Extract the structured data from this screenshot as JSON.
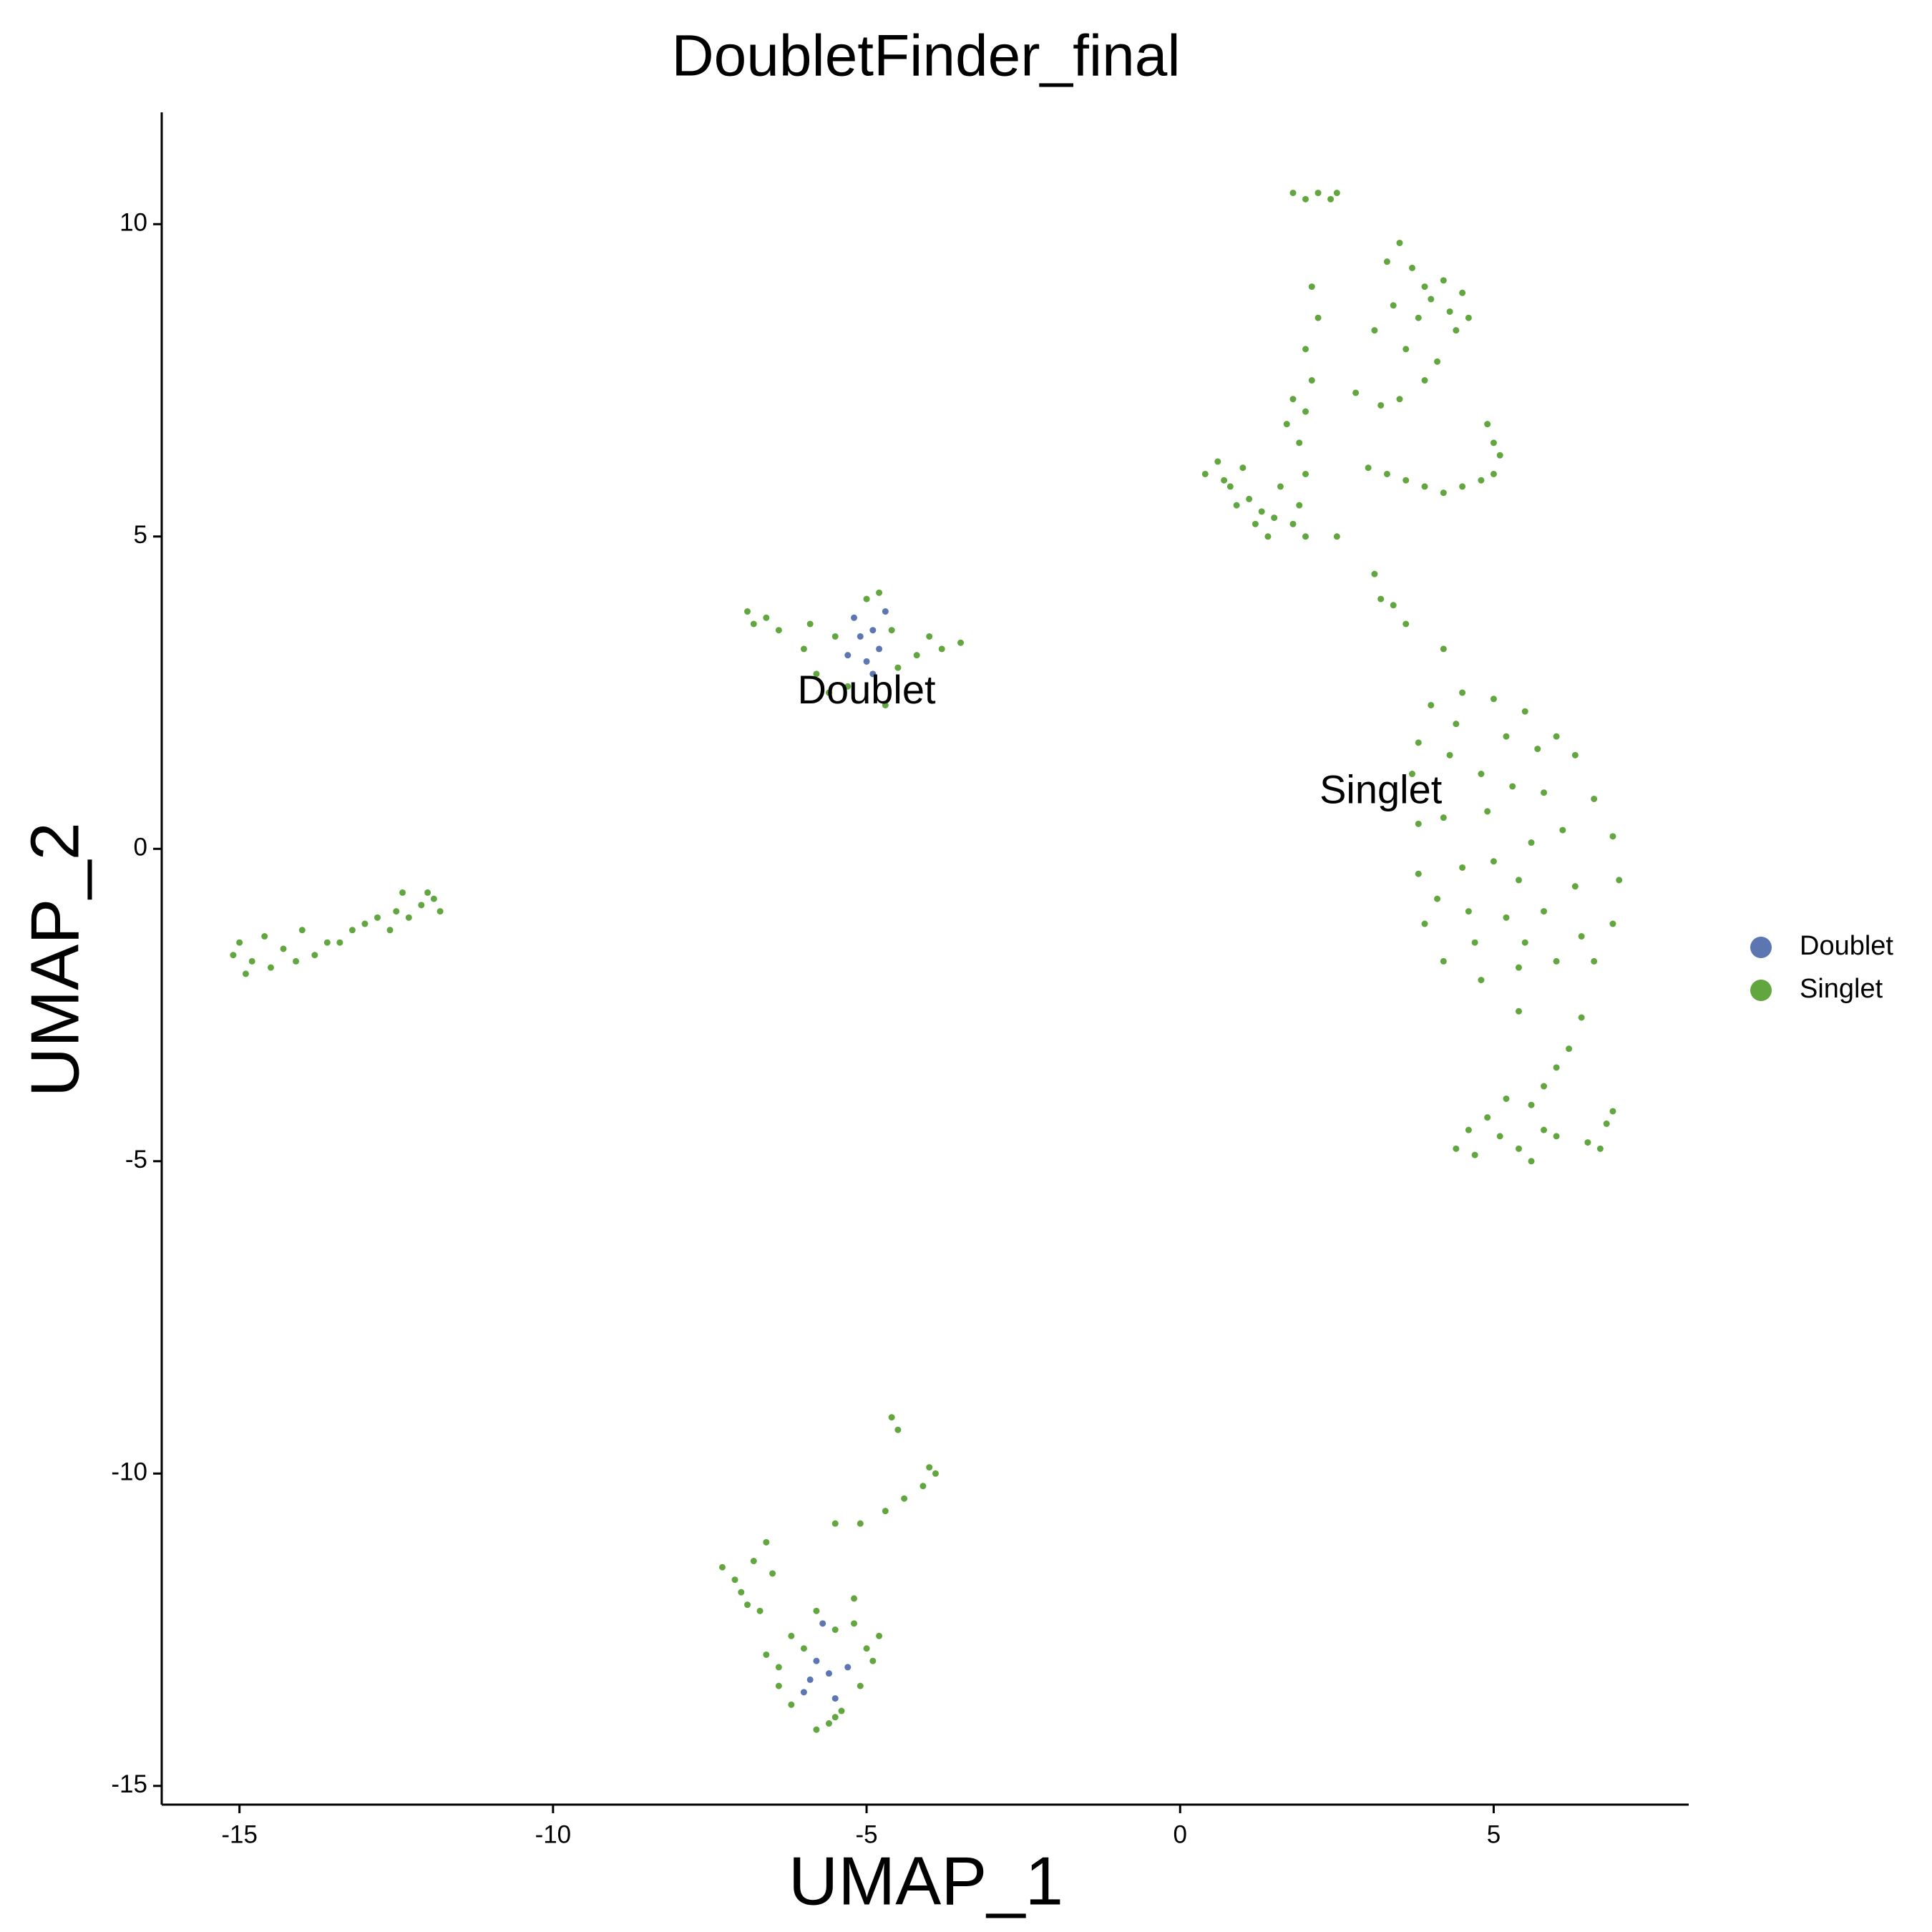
{
  "chart_data": {
    "type": "scatter",
    "title": "DoubletFinder_final",
    "x_label": "UMAP_1",
    "y_label": "UMAP_2",
    "xlim": [
      -16.24,
      8.11
    ],
    "ylim": [
      -15.3,
      11.79
    ],
    "xticks": [
      -15,
      -10,
      -5,
      0,
      5
    ],
    "yticks": [
      -15,
      -10,
      -5,
      0,
      5,
      10
    ],
    "grid": false,
    "legend": "right",
    "annotations": [
      {
        "text": "Doublet",
        "x": -5,
        "y": 2.5
      },
      {
        "text": "Singlet",
        "x": 3.2,
        "y": 0.9
      }
    ],
    "series": [
      {
        "name": "Doublet",
        "color": "#5b76b0",
        "x": [
          -5.2,
          -4.9,
          -5.0,
          -4.8,
          -5.1,
          -4.7,
          -5.3,
          -4.9,
          -5.8,
          -5.6,
          -6.0,
          -5.5,
          -5.7,
          -5.3,
          -5.9
        ],
        "y": [
          3.7,
          3.5,
          3.0,
          3.2,
          3.4,
          3.8,
          3.1,
          2.8,
          -13.0,
          -13.2,
          -13.5,
          -13.6,
          -12.4,
          -13.1,
          -13.3
        ]
      },
      {
        "name": "Singlet",
        "color": "#62a640",
        "x": [
          -15.0,
          -14.8,
          -14.6,
          -14.5,
          -14.3,
          -14.1,
          -14.0,
          -13.8,
          -13.6,
          -13.4,
          -13.2,
          -13.0,
          -12.8,
          -12.6,
          -12.5,
          -12.3,
          -12.1,
          -11.9,
          -11.8,
          -15.1,
          -14.9,
          -12.4,
          -12.0,
          -6.9,
          -6.8,
          -6.6,
          -6.4,
          -6.0,
          -5.8,
          -5.5,
          -5.6,
          -5.3,
          -4.6,
          -4.5,
          -4.2,
          -4.0,
          -3.8,
          -3.5,
          -4.8,
          -5.0,
          -4.7,
          -5.9,
          -4.6,
          -4.5,
          -4.0,
          -3.9,
          -4.1,
          -4.4,
          -4.7,
          -5.1,
          -5.5,
          -7.3,
          -7.1,
          -7.0,
          -6.8,
          -6.6,
          -6.5,
          -6.9,
          -6.7,
          -6.6,
          -6.4,
          -6.2,
          -6.0,
          -5.8,
          -5.5,
          -5.2,
          -5.0,
          -4.9,
          -5.1,
          -5.4,
          -5.6,
          -5.8,
          -6.2,
          -6.4,
          -5.2,
          -4.8,
          -5.5,
          1.8,
          2.0,
          2.2,
          2.4,
          2.5,
          2.1,
          2.2,
          2.0,
          2.1,
          2.0,
          1.8,
          1.7,
          1.9,
          2.0,
          1.9,
          1.8,
          2.0,
          2.5,
          0.4,
          0.6,
          0.8,
          0.9,
          1.1,
          1.2,
          1.4,
          1.5,
          1.6,
          0.7,
          1.0,
          1.3,
          3.3,
          3.5,
          3.7,
          3.9,
          4.0,
          4.2,
          4.3,
          4.4,
          4.5,
          3.8,
          3.6,
          4.1,
          3.9,
          3.5,
          3.2,
          2.8,
          3.1,
          3.4,
          4.6,
          3.0,
          3.3,
          3.6,
          3.9,
          4.2,
          4.5,
          4.8,
          5.0,
          5.1,
          5.0,
          4.9,
          3.1,
          3.2,
          3.4,
          3.6,
          4.2,
          4.0,
          4.5,
          5.0,
          5.5,
          6.0,
          6.3,
          6.6,
          6.9,
          7.0,
          6.9,
          6.6,
          6.0,
          5.4,
          4.8,
          4.2,
          3.9,
          3.8,
          3.8,
          3.7,
          3.8,
          4.3,
          4.8,
          5.3,
          5.8,
          6.1,
          5.6,
          5.0,
          4.5,
          4.2,
          4.6,
          5.2,
          5.8,
          6.3,
          5.4,
          4.9,
          5.7,
          4.4,
          6.4,
          4.1,
          5.2,
          5.5,
          4.7,
          5.4,
          6.4,
          6.2,
          6.0,
          5.8,
          5.6,
          5.2,
          4.9,
          4.6,
          4.4,
          4.7,
          5.1,
          5.4,
          5.6,
          6.0,
          6.5,
          6.8,
          6.9,
          6.7,
          5.8
        ],
        "y": [
          -1.5,
          -1.8,
          -1.4,
          -1.9,
          -1.6,
          -1.8,
          -1.3,
          -1.7,
          -1.5,
          -1.5,
          -1.3,
          -1.2,
          -1.1,
          -1.3,
          -1.0,
          -1.1,
          -0.9,
          -0.8,
          -1.0,
          -1.7,
          -2.0,
          -0.7,
          -0.7,
          3.8,
          3.6,
          3.7,
          3.5,
          3.2,
          2.8,
          3.4,
          2.5,
          2.6,
          3.5,
          2.9,
          3.1,
          3.4,
          3.2,
          3.3,
          4.1,
          4.0,
          2.3,
          3.6,
          -9.1,
          -9.3,
          -9.9,
          -10.0,
          -10.2,
          -10.4,
          -10.6,
          -10.8,
          -10.8,
          -11.5,
          -11.7,
          -11.9,
          -11.4,
          -11.1,
          -11.6,
          -12.1,
          -12.2,
          -12.9,
          -13.1,
          -12.6,
          -12.8,
          -12.2,
          -12.5,
          -12.4,
          -12.8,
          -13.0,
          -13.4,
          -13.8,
          -14.0,
          -14.1,
          -13.7,
          -13.4,
          -12.0,
          -12.6,
          -13.9,
          10.5,
          10.4,
          10.5,
          10.4,
          10.5,
          9.0,
          8.5,
          8.0,
          7.5,
          7.0,
          7.2,
          6.8,
          6.5,
          6.0,
          5.5,
          5.2,
          5.0,
          5.0,
          6.0,
          6.2,
          5.8,
          5.5,
          5.6,
          5.2,
          5.0,
          5.3,
          5.8,
          5.9,
          6.1,
          5.4,
          9.4,
          9.7,
          9.3,
          9.0,
          8.8,
          9.1,
          8.6,
          8.3,
          8.9,
          8.5,
          8.0,
          7.8,
          7.5,
          7.2,
          7.1,
          7.3,
          8.3,
          8.7,
          8.5,
          6.1,
          6.0,
          5.9,
          5.8,
          5.7,
          5.8,
          5.9,
          6.0,
          6.3,
          6.5,
          6.8,
          4.4,
          4.0,
          3.9,
          3.6,
          3.2,
          2.3,
          2.5,
          2.4,
          2.2,
          1.8,
          1.5,
          0.8,
          0.2,
          -0.5,
          -1.2,
          -1.8,
          -1.8,
          -1.9,
          -2.1,
          -1.8,
          -1.2,
          -0.4,
          0.4,
          1.2,
          1.7,
          1.5,
          1.2,
          1.0,
          0.9,
          0.3,
          0.1,
          -0.2,
          -0.3,
          0.5,
          -1.0,
          -1.1,
          -1.0,
          -0.6,
          -0.5,
          0.6,
          1.6,
          2.0,
          -1.4,
          -0.8,
          1.8,
          -1.5,
          -1.5,
          -2.6,
          -2.7,
          -3.2,
          -3.5,
          -3.8,
          -4.1,
          -4.0,
          -4.3,
          -4.5,
          -4.8,
          -4.9,
          -4.6,
          -4.8,
          -5.0,
          -4.6,
          -4.7,
          -4.4,
          -4.2,
          -4.8,
          -4.5
        ]
      }
    ]
  }
}
